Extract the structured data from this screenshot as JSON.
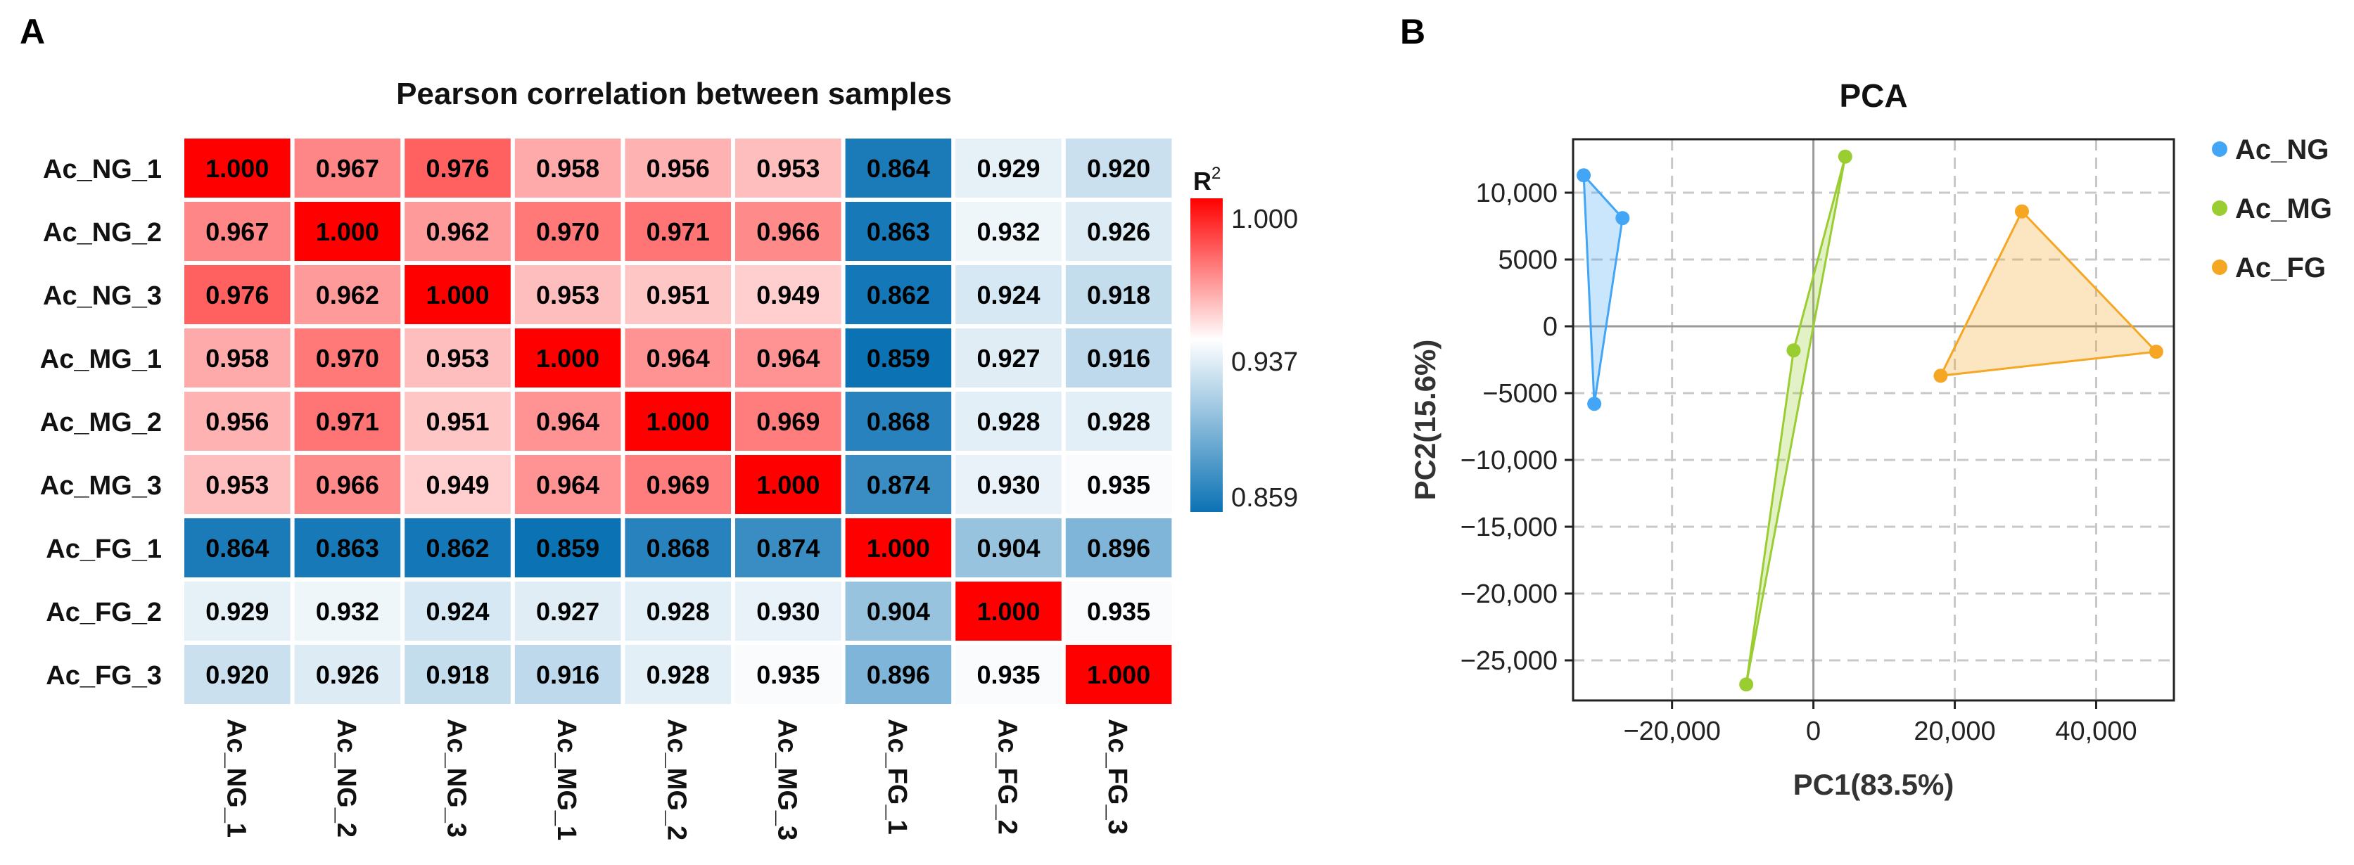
{
  "chart_data": [
    {
      "panel": "A",
      "type": "heatmap",
      "title": "Pearson correlation between samples",
      "row_labels": [
        "Ac_NG_1",
        "Ac_NG_2",
        "Ac_NG_3",
        "Ac_MG_1",
        "Ac_MG_2",
        "Ac_MG_3",
        "Ac_FG_1",
        "Ac_FG_2",
        "Ac_FG_3"
      ],
      "col_labels": [
        "Ac_NG_1",
        "Ac_NG_2",
        "Ac_NG_3",
        "Ac_MG_1",
        "Ac_MG_2",
        "Ac_MG_3",
        "Ac_FG_1",
        "Ac_FG_2",
        "Ac_FG_3"
      ],
      "values": [
        [
          1.0,
          0.967,
          0.976,
          0.958,
          0.956,
          0.953,
          0.864,
          0.929,
          0.92
        ],
        [
          0.967,
          1.0,
          0.962,
          0.97,
          0.971,
          0.966,
          0.863,
          0.932,
          0.926
        ],
        [
          0.976,
          0.962,
          1.0,
          0.953,
          0.951,
          0.949,
          0.862,
          0.924,
          0.918
        ],
        [
          0.958,
          0.97,
          0.953,
          1.0,
          0.964,
          0.964,
          0.859,
          0.927,
          0.916
        ],
        [
          0.956,
          0.971,
          0.951,
          0.964,
          1.0,
          0.969,
          0.868,
          0.928,
          0.928
        ],
        [
          0.953,
          0.966,
          0.949,
          0.964,
          0.969,
          1.0,
          0.874,
          0.93,
          0.935
        ],
        [
          0.864,
          0.863,
          0.862,
          0.859,
          0.868,
          0.874,
          1.0,
          0.904,
          0.896
        ],
        [
          0.929,
          0.932,
          0.924,
          0.927,
          0.928,
          0.93,
          0.904,
          1.0,
          0.935
        ],
        [
          0.92,
          0.926,
          0.918,
          0.916,
          0.928,
          0.935,
          0.896,
          0.935,
          1.0
        ]
      ],
      "colorbar": {
        "title": "R",
        "superscript": "2",
        "min": 0.859,
        "mid": 0.937,
        "max": 1.0,
        "tick_labels": [
          "1.000",
          "0.937",
          "0.859"
        ],
        "colors": {
          "low": "#0b72b4",
          "mid": "#ffffff",
          "high": "#ff0000"
        }
      }
    },
    {
      "panel": "B",
      "type": "scatter",
      "title": "PCA",
      "xlabel": "PC1(83.5%)",
      "ylabel": "PC2(15.6%)",
      "xlim": [
        -34000,
        51000
      ],
      "ylim": [
        -28000,
        14000
      ],
      "xticks": [
        -20000,
        0,
        20000,
        40000
      ],
      "xtick_labels": [
        "−20,000",
        "0",
        "20,000",
        "40,000"
      ],
      "yticks": [
        10000,
        5000,
        0,
        -5000,
        -10000,
        -15000,
        -20000,
        -25000
      ],
      "ytick_labels": [
        "10,000",
        "5000",
        "0",
        "−5000",
        "−10,000",
        "−15,000",
        "−20,000",
        "−25,000"
      ],
      "grid": true,
      "legend_position": "right",
      "series": [
        {
          "name": "Ac_NG",
          "color": "#42a5f5",
          "x": [
            -32500,
            -27000,
            -31000
          ],
          "y": [
            11300,
            8100,
            -5800
          ]
        },
        {
          "name": "Ac_MG",
          "color": "#9acd32",
          "x": [
            4500,
            -2800,
            -9500
          ],
          "y": [
            12700,
            -1800,
            -26800
          ]
        },
        {
          "name": "Ac_FG",
          "color": "#f5a623",
          "x": [
            29500,
            48500,
            18000
          ],
          "y": [
            8600,
            -1900,
            -3700
          ]
        }
      ]
    }
  ],
  "panels": {
    "a_label": "A",
    "b_label": "B"
  }
}
